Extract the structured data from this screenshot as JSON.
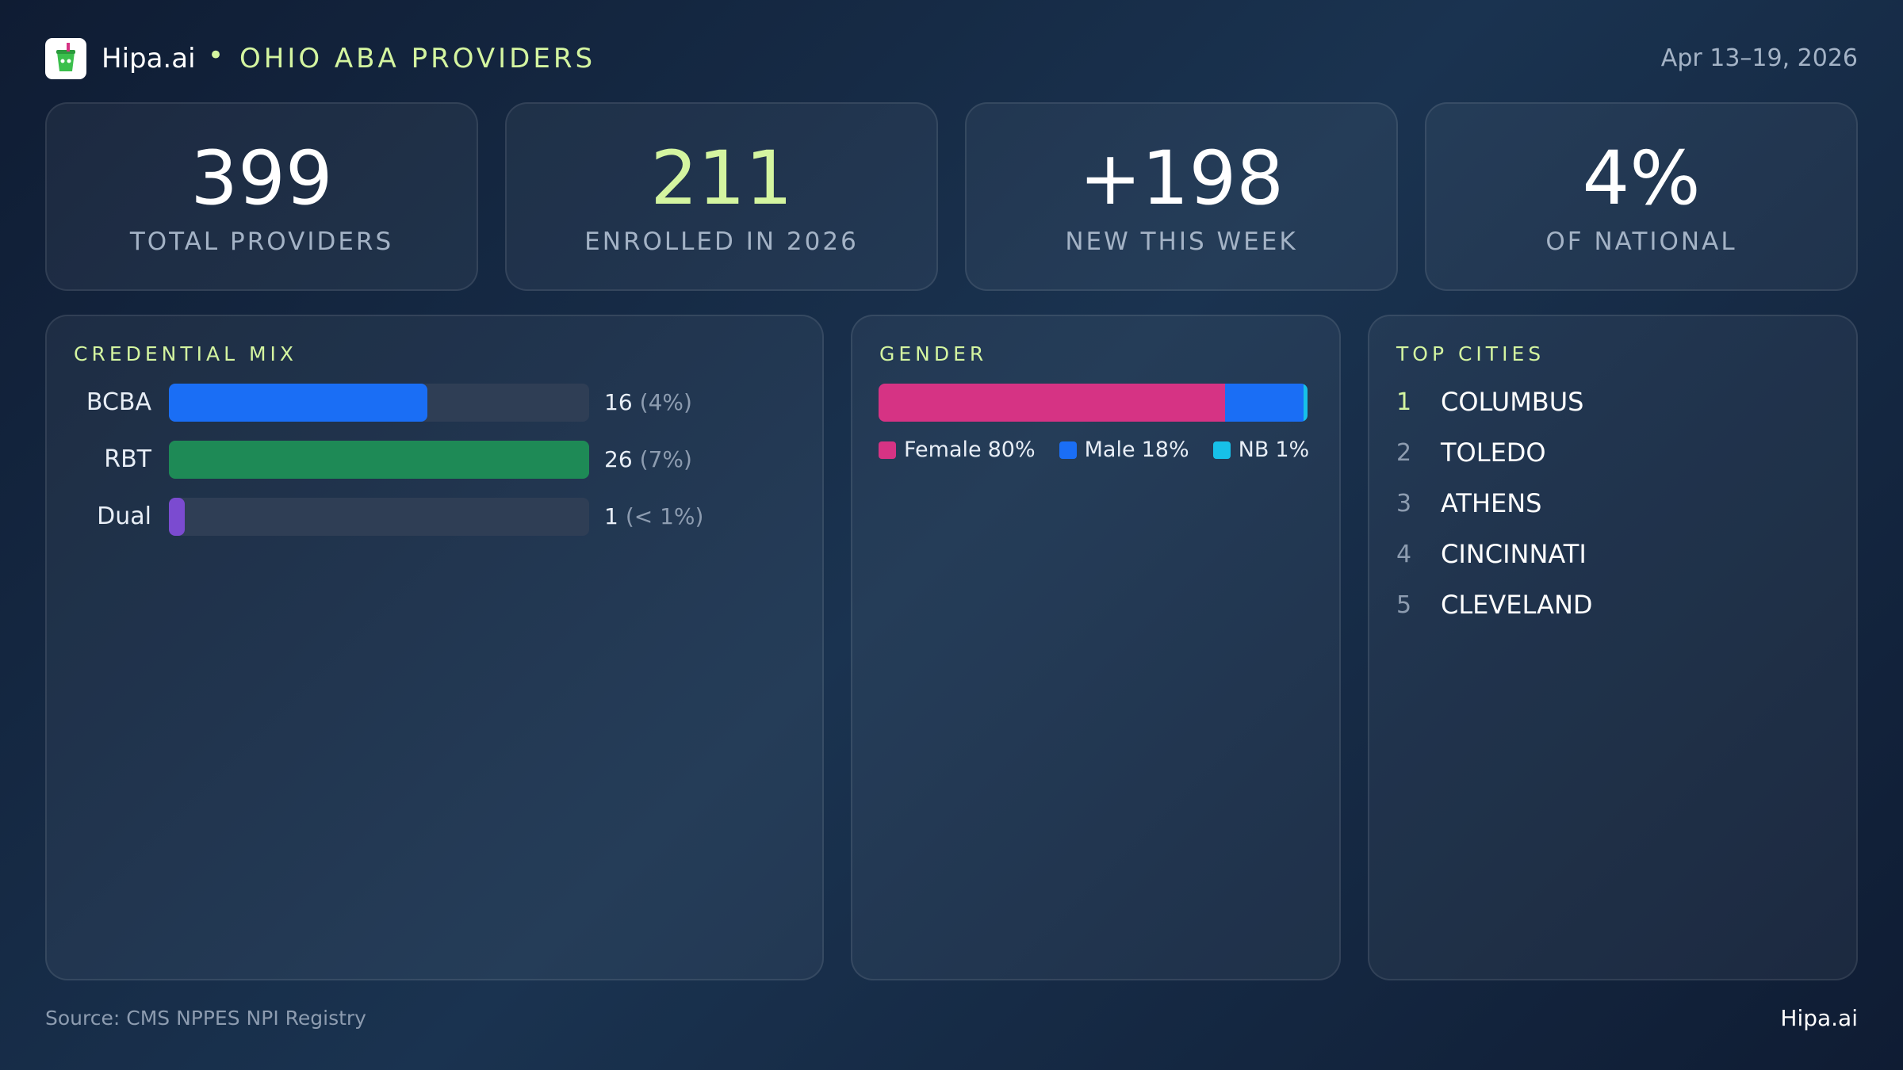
{
  "header": {
    "brand": "Hipa.ai",
    "title": "OHIO ABA PROVIDERS",
    "date": "Apr 13–19, 2026"
  },
  "kpis": [
    {
      "value": "399",
      "label": "TOTAL PROVIDERS"
    },
    {
      "value": "211",
      "label": "ENROLLED IN 2026"
    },
    {
      "value": "+198",
      "label": "NEW THIS WEEK"
    },
    {
      "value": "4%",
      "label": "OF NATIONAL"
    }
  ],
  "credential_mix": {
    "title": "CREDENTIAL MIX",
    "items": [
      {
        "name": "BCBA",
        "value": 16,
        "share": "(4%)",
        "color": "#1a6ef5"
      },
      {
        "name": "RBT",
        "value": 26,
        "share": "(7%)",
        "color": "#1e8a56"
      },
      {
        "name": "Dual",
        "value": 1,
        "share": "(< 1%)",
        "color": "#7b4bd0"
      }
    ]
  },
  "gender": {
    "title": "GENDER",
    "items": [
      {
        "name": "Female",
        "value": 80,
        "label": "80%",
        "color": "#d63384"
      },
      {
        "name": "Male",
        "value": 18,
        "label": "18%",
        "color": "#1a6ef5"
      },
      {
        "name": "NB",
        "value": 1,
        "label": "1%",
        "color": "#17c0e8"
      }
    ]
  },
  "top_cities": {
    "title": "TOP CITIES",
    "items": [
      {
        "rank": 1,
        "name": "COLUMBUS"
      },
      {
        "rank": 2,
        "name": "TOLEDO"
      },
      {
        "rank": 3,
        "name": "ATHENS"
      },
      {
        "rank": 4,
        "name": "CINCINNATI"
      },
      {
        "rank": 5,
        "name": "CLEVELAND"
      }
    ]
  },
  "footer": {
    "source": "Source: CMS NPPES NPI Registry",
    "brand": "Hipa.ai"
  }
}
